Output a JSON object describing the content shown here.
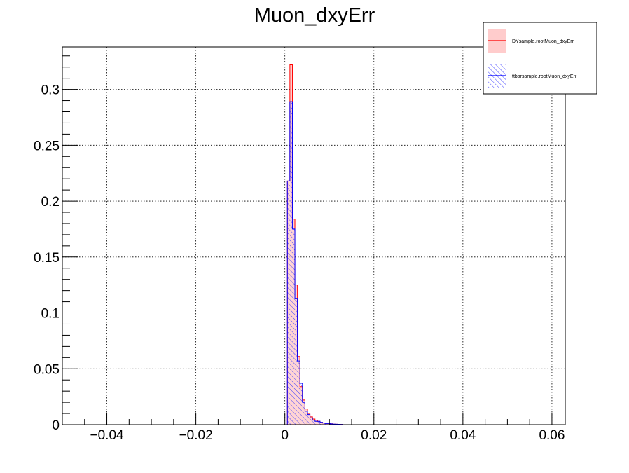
{
  "chart_data": {
    "type": "histogram",
    "title": "Muon_dxyErr",
    "xlabel": "",
    "ylabel": "",
    "xlim": [
      -0.05,
      0.063
    ],
    "ylim": [
      0,
      0.338
    ],
    "grid": true,
    "legend_position": "top-right",
    "x_ticks": [
      -0.04,
      -0.02,
      0,
      0.02,
      0.04,
      0.06
    ],
    "x_tick_labels": [
      "−0.04",
      "−0.02",
      "0",
      "0.02",
      "0.04",
      "0.06"
    ],
    "y_ticks": [
      0,
      0.05,
      0.1,
      0.15,
      0.2,
      0.25,
      0.3
    ],
    "y_tick_labels": [
      "0",
      "0.05",
      "0.1",
      "0.15",
      "0.2",
      "0.25",
      "0.3"
    ],
    "bin_width": 0.000565,
    "bin_starts": [
      0.00056,
      0.00113,
      0.00169,
      0.00226,
      0.00282,
      0.00339,
      0.00395,
      0.00452,
      0.00508,
      0.00565,
      0.00621,
      0.00678,
      0.00734,
      0.00791,
      0.00847,
      0.00904,
      0.0096,
      0.01017,
      0.01073,
      0.0113,
      0.01186,
      0.01243
    ],
    "series": [
      {
        "name": "DYsample.rootMuon_dxyErr",
        "color": "#ff0000",
        "fill": "#ffcccc",
        "values": [
          0.218,
          0.322,
          0.184,
          0.125,
          0.061,
          0.034,
          0.022,
          0.014,
          0.01,
          0.007,
          0.005,
          0.004,
          0.003,
          0.002,
          0.0015,
          0.001,
          0.001,
          0.0008,
          0.0005,
          0.0004,
          0.0003,
          0.0002
        ]
      },
      {
        "name": "ttbarsample.rootMuon_dxyErr",
        "color": "#0000ff",
        "fill": "hatch",
        "values": [
          0.218,
          0.289,
          0.175,
          0.113,
          0.057,
          0.037,
          0.02,
          0.012,
          0.009,
          0.006,
          0.004,
          0.003,
          0.003,
          0.002,
          0.0015,
          0.001,
          0.001,
          0.0007,
          0.0005,
          0.0004,
          0.0003,
          0.0002
        ]
      }
    ]
  }
}
